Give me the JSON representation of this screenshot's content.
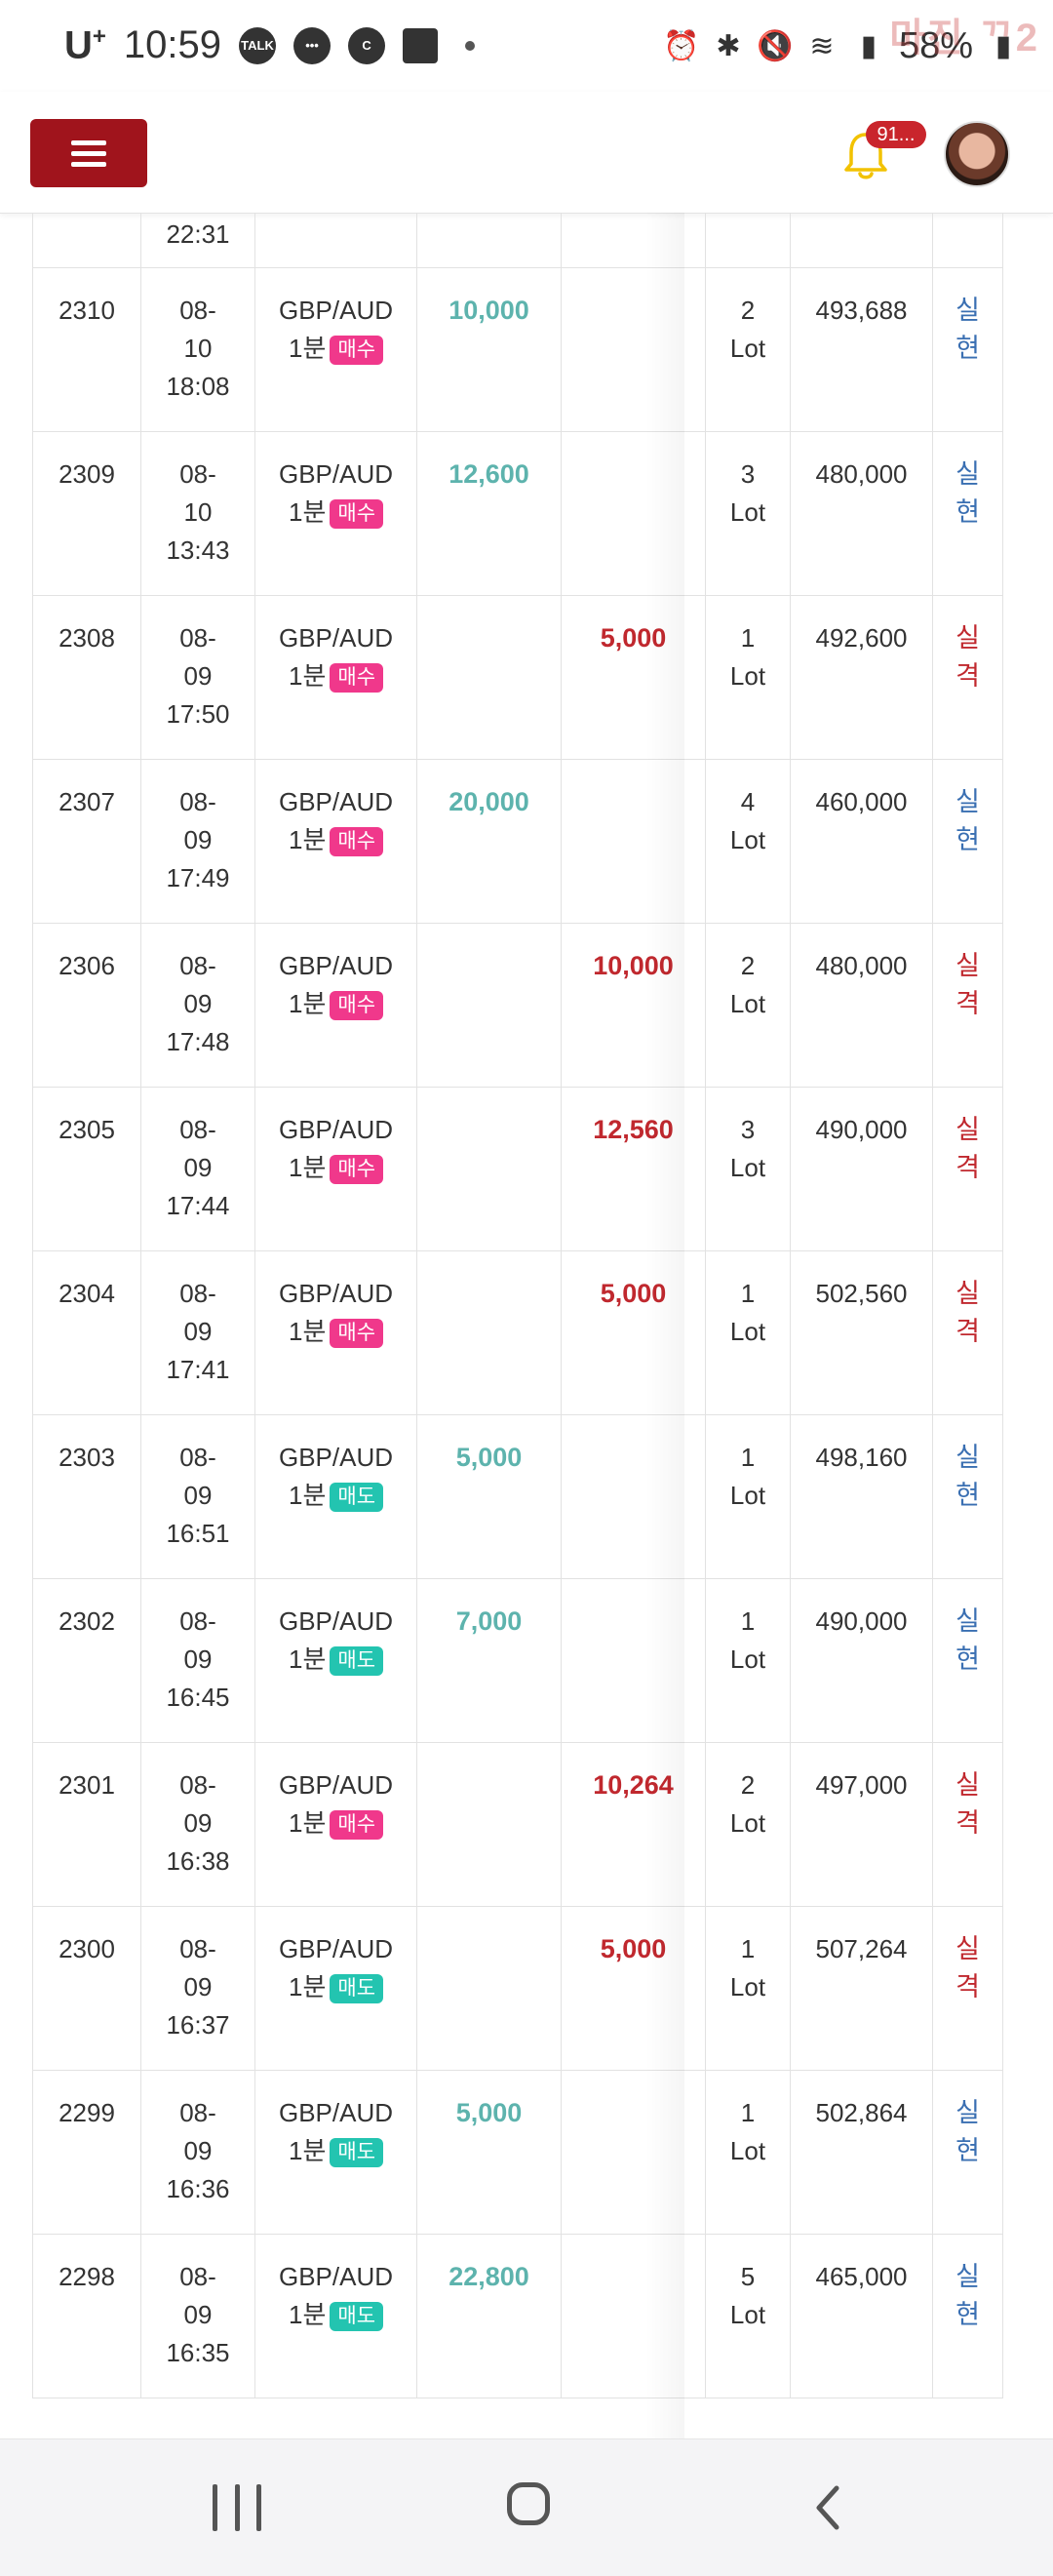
{
  "status_bar": {
    "carrier": "U",
    "carrier_sup": "+",
    "time": "10:59",
    "talk_label": "TALK",
    "c_label": "C",
    "battery": "58%",
    "watermark": "마진 ᄁ2"
  },
  "header": {
    "notification_count": "91...",
    "menu_icon": "hamburger-icon",
    "bell_icon": "bell-icon"
  },
  "colors": {
    "menu_button": "#a0141c",
    "buy_tag": "#f0388b",
    "sell_tag": "#23c4b0",
    "profit": "#5db3ad",
    "loss": "#c0282e",
    "result_win": "#3a6fb2",
    "result_lose": "#c0282e"
  },
  "table": {
    "partial_top": {
      "time": "22:31"
    },
    "rows": [
      {
        "no": "2310",
        "date1": "08-",
        "date2": "10",
        "time": "18:08",
        "pair": "GBP/AUD",
        "period": "1분",
        "side": "매수",
        "side_type": "buy",
        "profit": "10,000",
        "loss": "",
        "lots": "2",
        "lot_unit": "Lot",
        "balance": "493,688",
        "result1": "실",
        "result2": "현",
        "result_type": "win"
      },
      {
        "no": "2309",
        "date1": "08-",
        "date2": "10",
        "time": "13:43",
        "pair": "GBP/AUD",
        "period": "1분",
        "side": "매수",
        "side_type": "buy",
        "profit": "12,600",
        "loss": "",
        "lots": "3",
        "lot_unit": "Lot",
        "balance": "480,000",
        "result1": "실",
        "result2": "현",
        "result_type": "win"
      },
      {
        "no": "2308",
        "date1": "08-",
        "date2": "09",
        "time": "17:50",
        "pair": "GBP/AUD",
        "period": "1분",
        "side": "매수",
        "side_type": "buy",
        "profit": "",
        "loss": "5,000",
        "lots": "1",
        "lot_unit": "Lot",
        "balance": "492,600",
        "result1": "실",
        "result2": "격",
        "result_type": "lose"
      },
      {
        "no": "2307",
        "date1": "08-",
        "date2": "09",
        "time": "17:49",
        "pair": "GBP/AUD",
        "period": "1분",
        "side": "매수",
        "side_type": "buy",
        "profit": "20,000",
        "loss": "",
        "lots": "4",
        "lot_unit": "Lot",
        "balance": "460,000",
        "result1": "실",
        "result2": "현",
        "result_type": "win"
      },
      {
        "no": "2306",
        "date1": "08-",
        "date2": "09",
        "time": "17:48",
        "pair": "GBP/AUD",
        "period": "1분",
        "side": "매수",
        "side_type": "buy",
        "profit": "",
        "loss": "10,000",
        "lots": "2",
        "lot_unit": "Lot",
        "balance": "480,000",
        "result1": "실",
        "result2": "격",
        "result_type": "lose"
      },
      {
        "no": "2305",
        "date1": "08-",
        "date2": "09",
        "time": "17:44",
        "pair": "GBP/AUD",
        "period": "1분",
        "side": "매수",
        "side_type": "buy",
        "profit": "",
        "loss": "12,560",
        "lots": "3",
        "lot_unit": "Lot",
        "balance": "490,000",
        "result1": "실",
        "result2": "격",
        "result_type": "lose"
      },
      {
        "no": "2304",
        "date1": "08-",
        "date2": "09",
        "time": "17:41",
        "pair": "GBP/AUD",
        "period": "1분",
        "side": "매수",
        "side_type": "buy",
        "profit": "",
        "loss": "5,000",
        "lots": "1",
        "lot_unit": "Lot",
        "balance": "502,560",
        "result1": "실",
        "result2": "격",
        "result_type": "lose"
      },
      {
        "no": "2303",
        "date1": "08-",
        "date2": "09",
        "time": "16:51",
        "pair": "GBP/AUD",
        "period": "1분",
        "side": "매도",
        "side_type": "sell",
        "profit": "5,000",
        "loss": "",
        "lots": "1",
        "lot_unit": "Lot",
        "balance": "498,160",
        "result1": "실",
        "result2": "현",
        "result_type": "win"
      },
      {
        "no": "2302",
        "date1": "08-",
        "date2": "09",
        "time": "16:45",
        "pair": "GBP/AUD",
        "period": "1분",
        "side": "매도",
        "side_type": "sell",
        "profit": "7,000",
        "loss": "",
        "lots": "1",
        "lot_unit": "Lot",
        "balance": "490,000",
        "result1": "실",
        "result2": "현",
        "result_type": "win"
      },
      {
        "no": "2301",
        "date1": "08-",
        "date2": "09",
        "time": "16:38",
        "pair": "GBP/AUD",
        "period": "1분",
        "side": "매수",
        "side_type": "buy",
        "profit": "",
        "loss": "10,264",
        "lots": "2",
        "lot_unit": "Lot",
        "balance": "497,000",
        "result1": "실",
        "result2": "격",
        "result_type": "lose"
      },
      {
        "no": "2300",
        "date1": "08-",
        "date2": "09",
        "time": "16:37",
        "pair": "GBP/AUD",
        "period": "1분",
        "side": "매도",
        "side_type": "sell",
        "profit": "",
        "loss": "5,000",
        "lots": "1",
        "lot_unit": "Lot",
        "balance": "507,264",
        "result1": "실",
        "result2": "격",
        "result_type": "lose"
      },
      {
        "no": "2299",
        "date1": "08-",
        "date2": "09",
        "time": "16:36",
        "pair": "GBP/AUD",
        "period": "1분",
        "side": "매도",
        "side_type": "sell",
        "profit": "5,000",
        "loss": "",
        "lots": "1",
        "lot_unit": "Lot",
        "balance": "502,864",
        "result1": "실",
        "result2": "현",
        "result_type": "win"
      },
      {
        "no": "2298",
        "date1": "08-",
        "date2": "09",
        "time": "16:35",
        "pair": "GBP/AUD",
        "period": "1분",
        "side": "매도",
        "side_type": "sell",
        "profit": "22,800",
        "loss": "",
        "lots": "5",
        "lot_unit": "Lot",
        "balance": "465,000",
        "result1": "실",
        "result2": "현",
        "result_type": "win"
      }
    ]
  },
  "nav": {
    "recent_icon": "recent-apps-icon",
    "home_icon": "home-icon",
    "back_icon": "back-icon"
  }
}
